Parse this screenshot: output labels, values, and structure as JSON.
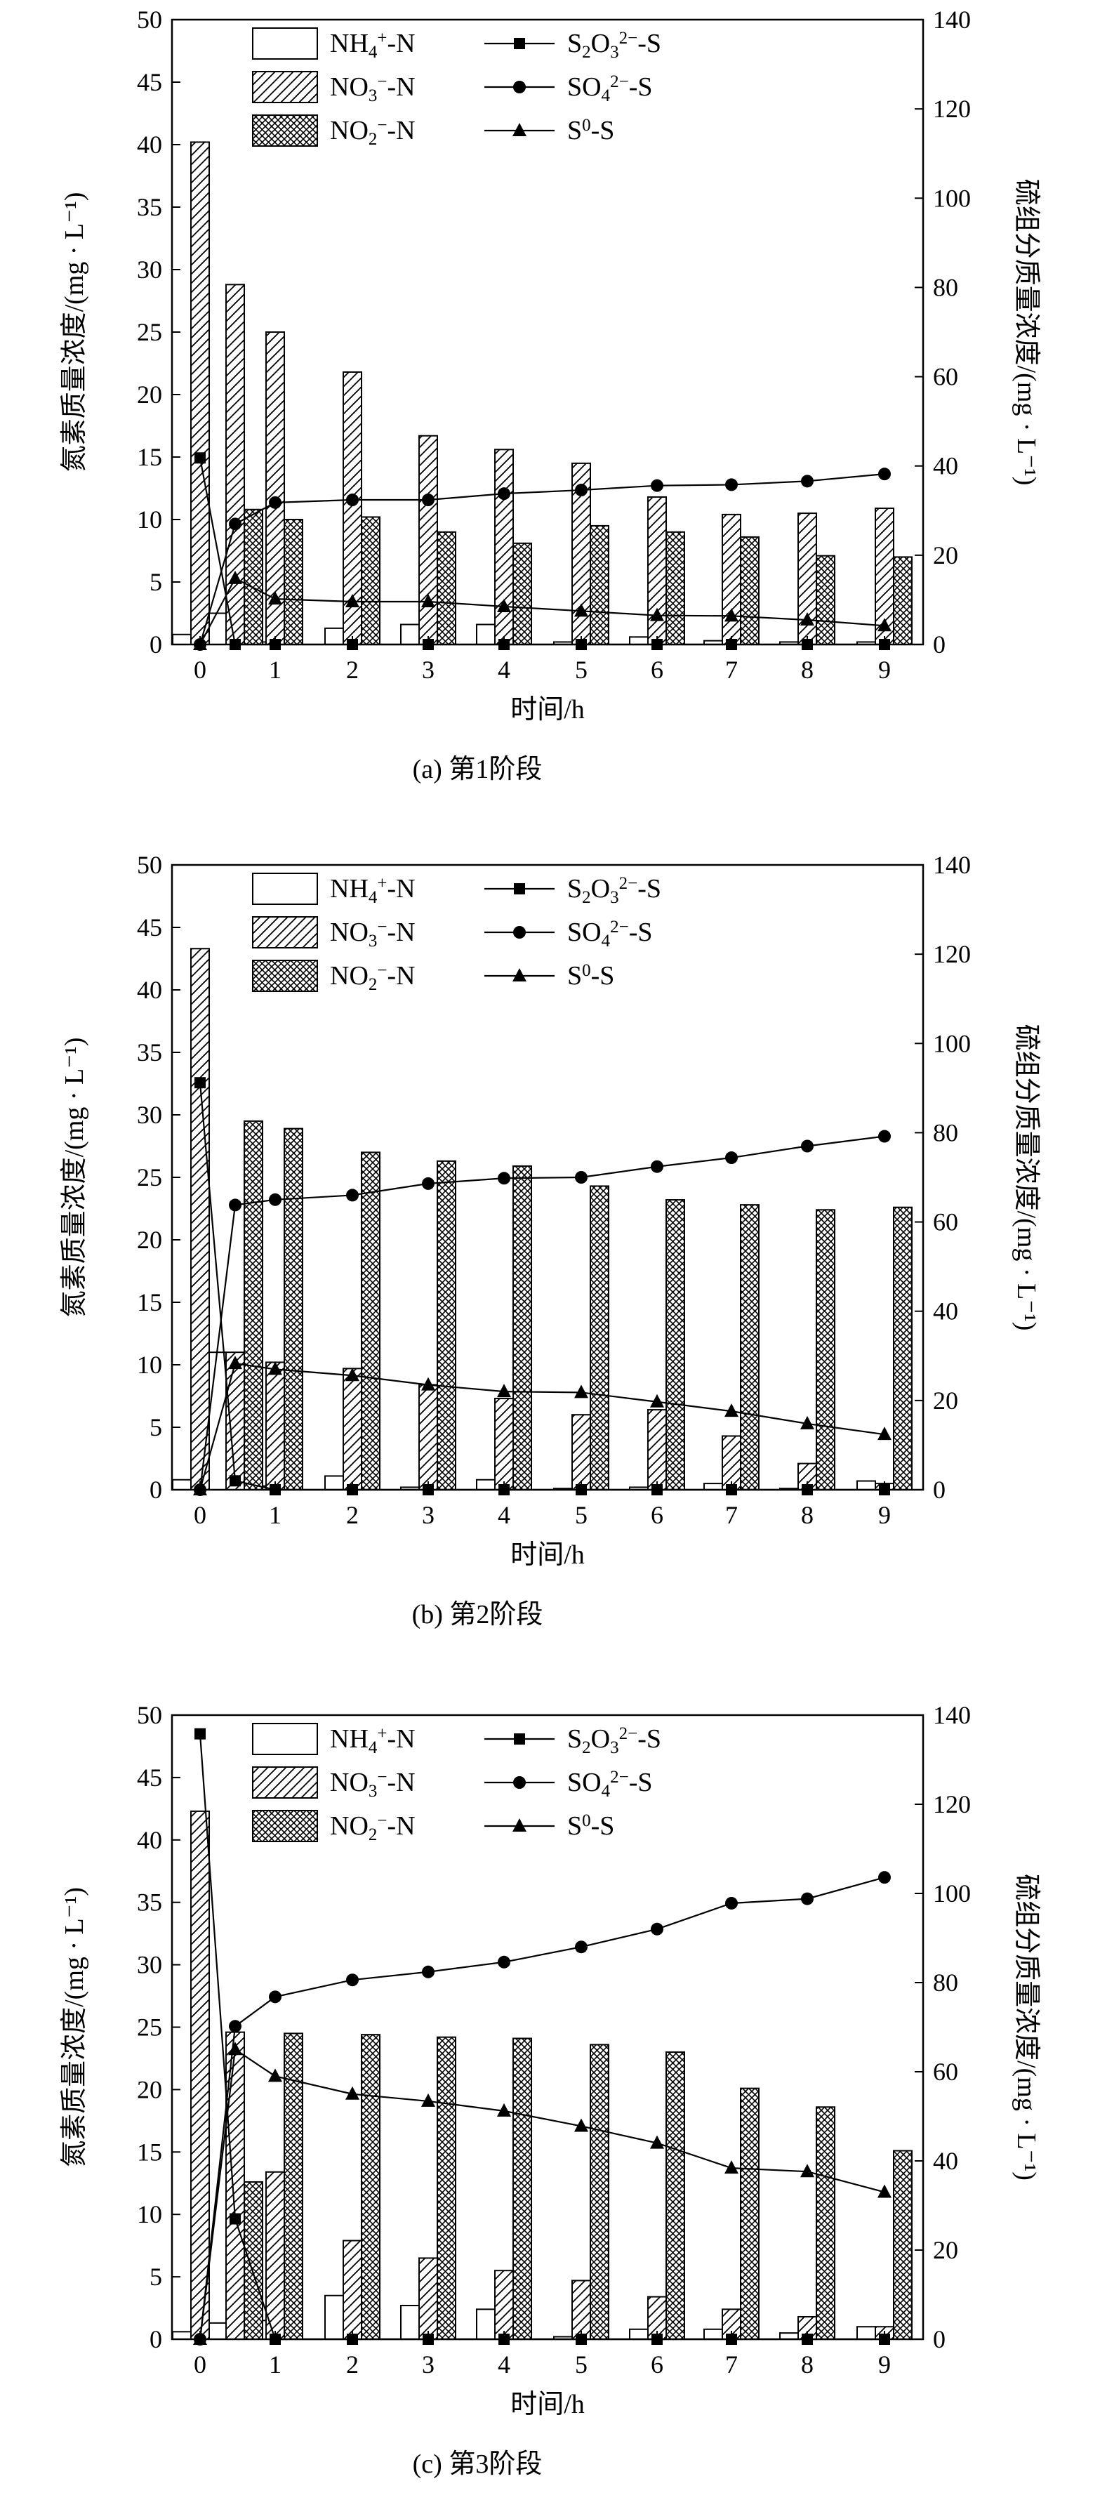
{
  "chart_data": [
    {
      "type": "bar",
      "title": "(a) 第1阶段",
      "xlabel": "时间/h",
      "ylabel": "氮素质量浓度/(mg · L⁻¹)",
      "y2label": "硫组分质量浓度/(mg · L⁻¹)",
      "ylim": [
        0,
        50
      ],
      "y2lim": [
        0,
        140
      ],
      "yticks": [
        0,
        5,
        10,
        15,
        20,
        25,
        30,
        35,
        40,
        45,
        50
      ],
      "y2ticks": [
        0,
        20,
        40,
        60,
        80,
        100,
        120,
        140
      ],
      "x_ticks": [
        "0",
        "1",
        "2",
        "3",
        "4",
        "5",
        "6",
        "7",
        "8",
        "9"
      ],
      "bar_x": [
        0,
        0.5,
        1,
        2,
        3,
        4,
        5,
        6,
        7,
        8,
        9
      ],
      "bar_series": [
        {
          "name": "NH4+-N",
          "pattern": "empty",
          "values": [
            0.8,
            2.5,
            0.2,
            1.3,
            1.6,
            1.6,
            0.2,
            0.6,
            0.3,
            0.2,
            0.2
          ]
        },
        {
          "name": "NO3−-N",
          "pattern": "hatch",
          "values": [
            40.2,
            28.8,
            25.0,
            21.8,
            16.7,
            15.6,
            14.5,
            11.8,
            10.4,
            10.5,
            10.9
          ]
        },
        {
          "name": "NO2−-N",
          "pattern": "cross",
          "values": [
            0,
            10.8,
            10.0,
            10.2,
            9.0,
            8.1,
            9.5,
            9.0,
            8.6,
            7.1,
            7.0
          ]
        }
      ],
      "line_x": [
        0,
        0.5,
        1,
        2,
        3,
        4,
        5,
        6,
        7,
        8,
        9
      ],
      "line_series": [
        {
          "name": "S2O32−-S",
          "marker": "square",
          "values": [
            41.8,
            0,
            0,
            0,
            0,
            0,
            0,
            0,
            0,
            0,
            0
          ]
        },
        {
          "name": "SO42−-S",
          "marker": "circle",
          "values": [
            0,
            27.0,
            31.8,
            32.4,
            32.4,
            33.8,
            34.6,
            35.6,
            35.8,
            36.6,
            38.2
          ]
        },
        {
          "name": "S0-S",
          "marker": "triangle",
          "values": [
            0,
            14.8,
            10.2,
            9.6,
            9.6,
            8.5,
            7.5,
            6.5,
            6.4,
            5.5,
            4.2
          ]
        }
      ],
      "legend": "top-center"
    },
    {
      "type": "bar",
      "title": "(b) 第2阶段",
      "xlabel": "时间/h",
      "ylabel": "氮素质量浓度/(mg · L⁻¹)",
      "y2label": "硫组分质量浓度/(mg · L⁻¹)",
      "ylim": [
        0,
        50
      ],
      "y2lim": [
        0,
        140
      ],
      "yticks": [
        0,
        5,
        10,
        15,
        20,
        25,
        30,
        35,
        40,
        45,
        50
      ],
      "y2ticks": [
        0,
        20,
        40,
        60,
        80,
        100,
        120,
        140
      ],
      "x_ticks": [
        "0",
        "1",
        "2",
        "3",
        "4",
        "5",
        "6",
        "7",
        "8",
        "9"
      ],
      "bar_x": [
        0,
        0.5,
        1,
        2,
        3,
        4,
        5,
        6,
        7,
        8,
        9
      ],
      "bar_series": [
        {
          "name": "NH4+-N",
          "pattern": "empty",
          "values": [
            0.8,
            11.0,
            0.3,
            1.1,
            0.2,
            0.8,
            0.1,
            0.2,
            0.5,
            0.1,
            0.7
          ]
        },
        {
          "name": "NO3−-N",
          "pattern": "hatch",
          "values": [
            43.3,
            11.0,
            10.2,
            9.7,
            8.4,
            7.3,
            6.0,
            6.4,
            4.3,
            2.1,
            0.5
          ]
        },
        {
          "name": "NO2−-N",
          "pattern": "cross",
          "values": [
            0,
            29.5,
            28.9,
            27.0,
            26.3,
            25.9,
            24.3,
            23.2,
            22.8,
            22.4,
            22.6
          ]
        }
      ],
      "line_x": [
        0,
        0.5,
        1,
        2,
        3,
        4,
        5,
        6,
        7,
        8,
        9
      ],
      "line_series": [
        {
          "name": "S2O32−-S",
          "marker": "square",
          "values": [
            91.2,
            2.0,
            0,
            0,
            0,
            0,
            0,
            0,
            0,
            0,
            0
          ]
        },
        {
          "name": "SO42−-S",
          "marker": "circle",
          "values": [
            0,
            63.8,
            65.0,
            66.0,
            68.6,
            69.8,
            70.0,
            72.4,
            74.4,
            77.0,
            79.2
          ]
        },
        {
          "name": "S0-S",
          "marker": "triangle",
          "values": [
            0,
            28.3,
            27.0,
            25.6,
            23.5,
            22.0,
            21.8,
            19.7,
            17.6,
            14.8,
            12.4
          ]
        }
      ],
      "legend": "top-center"
    },
    {
      "type": "bar",
      "title": "(c) 第3阶段",
      "xlabel": "时间/h",
      "ylabel": "氮素质量浓度/(mg · L⁻¹)",
      "y2label": "硫组分质量浓度/(mg · L⁻¹)",
      "ylim": [
        0,
        50
      ],
      "y2lim": [
        0,
        140
      ],
      "yticks": [
        0,
        5,
        10,
        15,
        20,
        25,
        30,
        35,
        40,
        45,
        50
      ],
      "y2ticks": [
        0,
        20,
        40,
        60,
        80,
        100,
        120,
        140
      ],
      "x_ticks": [
        "0",
        "1",
        "2",
        "3",
        "4",
        "5",
        "6",
        "7",
        "8",
        "9"
      ],
      "bar_x": [
        0,
        0.5,
        1,
        2,
        3,
        4,
        5,
        6,
        7,
        8,
        9
      ],
      "bar_series": [
        {
          "name": "NH4+-N",
          "pattern": "empty",
          "values": [
            0.6,
            1.3,
            1.5,
            3.5,
            2.7,
            2.4,
            0.2,
            0.8,
            0.8,
            0.5,
            1.0
          ]
        },
        {
          "name": "NO3−-N",
          "pattern": "hatch",
          "values": [
            42.3,
            24.6,
            13.4,
            7.9,
            6.5,
            5.5,
            4.7,
            3.4,
            2.4,
            1.8,
            1.0
          ]
        },
        {
          "name": "NO2−-N",
          "pattern": "cross",
          "values": [
            0,
            12.6,
            24.5,
            24.4,
            24.2,
            24.1,
            23.6,
            23.0,
            20.1,
            18.6,
            15.1
          ]
        }
      ],
      "line_x": [
        0,
        0.5,
        1,
        2,
        3,
        4,
        5,
        6,
        7,
        8,
        9
      ],
      "line_series": [
        {
          "name": "S2O32−-S",
          "marker": "square",
          "values": [
            135.8,
            27.0,
            0,
            0,
            0,
            0,
            0,
            0,
            0,
            0,
            0
          ]
        },
        {
          "name": "SO42−-S",
          "marker": "circle",
          "values": [
            0,
            70.2,
            76.8,
            80.6,
            82.4,
            84.6,
            88.0,
            92.0,
            97.8,
            98.8,
            103.6
          ]
        },
        {
          "name": "S0-S",
          "marker": "triangle",
          "values": [
            0,
            65.0,
            59.0,
            55.0,
            53.4,
            51.2,
            47.8,
            44.0,
            38.4,
            37.6,
            33.0
          ]
        }
      ],
      "legend": "top-center"
    }
  ]
}
